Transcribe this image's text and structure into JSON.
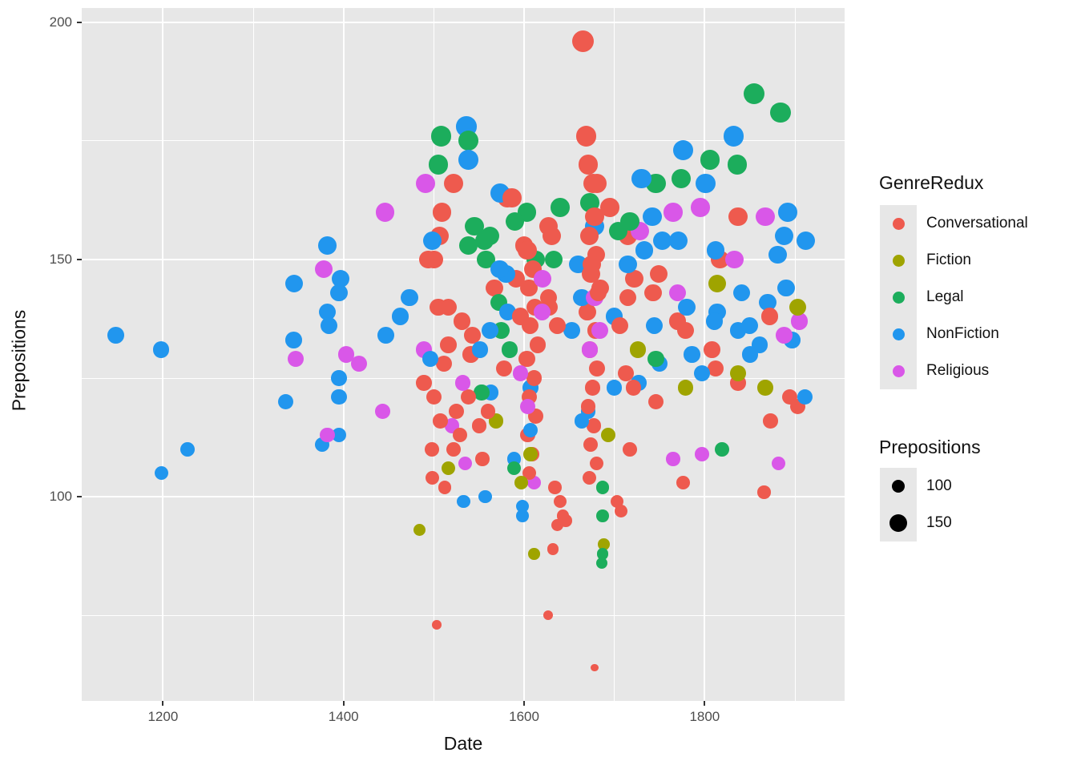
{
  "chart_data": {
    "type": "scatter",
    "title": "",
    "xlabel": "Date",
    "ylabel": "Prepositions",
    "x_major_ticks": [
      1200,
      1400,
      1600,
      1800
    ],
    "x_minor_ticks": [
      1300,
      1500,
      1700,
      1900
    ],
    "y_major_ticks": [
      100,
      150,
      200
    ],
    "y_minor_ticks": [
      75,
      125,
      175
    ],
    "xlim": [
      1110,
      1955
    ],
    "ylim": [
      57,
      203
    ],
    "grid": "on",
    "panel_bg": "#E7E7E7",
    "size_scale": {
      "maps": "Prepositions",
      "legend_values": [
        100,
        150
      ]
    },
    "color_legend": {
      "title": "GenreRedux",
      "position": "right",
      "entries": [
        {
          "label": "Conversational",
          "color": "#EE5A4E"
        },
        {
          "label": "Fiction",
          "color": "#9FA400"
        },
        {
          "label": "Legal",
          "color": "#1CAD5C"
        },
        {
          "label": "NonFiction",
          "color": "#2196EE"
        },
        {
          "label": "Religious",
          "color": "#D957E8"
        }
      ]
    },
    "size_legend": {
      "title": "Prepositions",
      "entries": [
        {
          "label": "100",
          "value": 100
        },
        {
          "label": "150",
          "value": 150
        }
      ],
      "dot_color": "#000000"
    },
    "series": [
      {
        "name": "Conversational",
        "color": "#EE5A4E",
        "points": [
          [
            1665,
            196
          ],
          [
            1669,
            176
          ],
          [
            1671,
            170
          ],
          [
            1676,
            166
          ],
          [
            1681,
            166
          ],
          [
            1678,
            159
          ],
          [
            1672,
            155
          ],
          [
            1680,
            151
          ],
          [
            1674,
            147
          ],
          [
            1682,
            143
          ],
          [
            1670,
            139
          ],
          [
            1679,
            135
          ],
          [
            1673,
            131
          ],
          [
            1681,
            127
          ],
          [
            1676,
            123
          ],
          [
            1671,
            119
          ],
          [
            1677,
            115
          ],
          [
            1674,
            111
          ],
          [
            1680,
            107
          ],
          [
            1672,
            104
          ],
          [
            1522,
            166
          ],
          [
            1509,
            160
          ],
          [
            1506,
            155
          ],
          [
            1500,
            150
          ],
          [
            1494,
            150
          ],
          [
            1516,
            140
          ],
          [
            1505,
            140
          ],
          [
            1531,
            137
          ],
          [
            1543,
            134
          ],
          [
            1511,
            128
          ],
          [
            1489,
            124
          ],
          [
            1538,
            121
          ],
          [
            1560,
            118
          ],
          [
            1507,
            116
          ],
          [
            1529,
            113
          ],
          [
            1498,
            104
          ],
          [
            1512,
            102
          ],
          [
            1500,
            121
          ],
          [
            1525,
            118
          ],
          [
            1550,
            115
          ],
          [
            1498,
            110
          ],
          [
            1522,
            110
          ],
          [
            1554,
            108
          ],
          [
            1516,
            132
          ],
          [
            1541,
            130
          ],
          [
            1578,
            127
          ],
          [
            1581,
            163
          ],
          [
            1587,
            163
          ],
          [
            1600,
            153
          ],
          [
            1631,
            155
          ],
          [
            1627,
            157
          ],
          [
            1604,
            152
          ],
          [
            1591,
            146
          ],
          [
            1567,
            144
          ],
          [
            1596,
            138
          ],
          [
            1628,
            140
          ],
          [
            1627,
            142
          ],
          [
            1637,
            136
          ],
          [
            1603,
            152
          ],
          [
            1610,
            148
          ],
          [
            1605,
            144
          ],
          [
            1612,
            140
          ],
          [
            1607,
            136
          ],
          [
            1615,
            132
          ],
          [
            1603,
            129
          ],
          [
            1611,
            125
          ],
          [
            1606,
            121
          ],
          [
            1613,
            117
          ],
          [
            1604,
            113
          ],
          [
            1609,
            109
          ],
          [
            1606,
            105
          ],
          [
            1634,
            102
          ],
          [
            1640,
            99
          ],
          [
            1643,
            96
          ],
          [
            1637,
            94
          ],
          [
            1646,
            95
          ],
          [
            1632,
            89
          ],
          [
            1703,
            99
          ],
          [
            1707,
            97
          ],
          [
            1684,
            144
          ],
          [
            1675,
            149
          ],
          [
            1695,
            161
          ],
          [
            1715,
            142
          ],
          [
            1722,
            146
          ],
          [
            1706,
            136
          ],
          [
            1713,
            126
          ],
          [
            1717,
            110
          ],
          [
            1743,
            143
          ],
          [
            1749,
            147
          ],
          [
            1770,
            137
          ],
          [
            1779,
            135
          ],
          [
            1808,
            131
          ],
          [
            1812,
            127
          ],
          [
            1837,
            124
          ],
          [
            1872,
            138
          ],
          [
            1817,
            150
          ],
          [
            1837,
            159
          ],
          [
            1721,
            123
          ],
          [
            1746,
            120
          ],
          [
            1873,
            116
          ],
          [
            1894,
            121
          ],
          [
            1903,
            119
          ],
          [
            1866,
            101
          ],
          [
            1776,
            103
          ],
          [
            1503,
            73
          ],
          [
            1627,
            75
          ],
          [
            1678,
            64
          ],
          [
            1715,
            155
          ]
        ]
      },
      {
        "name": "Fiction",
        "color": "#9FA400",
        "points": [
          [
            1484,
            93
          ],
          [
            1611,
            88
          ],
          [
            1597,
            103
          ],
          [
            1688,
            90
          ],
          [
            1693,
            113
          ],
          [
            1516,
            106
          ],
          [
            1569,
            116
          ],
          [
            1607,
            109
          ],
          [
            1726,
            131
          ],
          [
            1779,
            123
          ],
          [
            1837,
            126
          ],
          [
            1867,
            123
          ],
          [
            1903,
            140
          ],
          [
            1814,
            145
          ]
        ]
      },
      {
        "name": "Legal",
        "color": "#1CAD5C",
        "points": [
          [
            1508,
            176
          ],
          [
            1538,
            175
          ],
          [
            1505,
            170
          ],
          [
            1545,
            157
          ],
          [
            1556,
            154
          ],
          [
            1538,
            153
          ],
          [
            1562,
            155
          ],
          [
            1558,
            150
          ],
          [
            1590,
            158
          ],
          [
            1603,
            160
          ],
          [
            1613,
            150
          ],
          [
            1633,
            150
          ],
          [
            1640,
            161
          ],
          [
            1673,
            162
          ],
          [
            1704,
            156
          ],
          [
            1572,
            141
          ],
          [
            1575,
            135
          ],
          [
            1584,
            131
          ],
          [
            1553,
            122
          ],
          [
            1589,
            106
          ],
          [
            1687,
            102
          ],
          [
            1687,
            96
          ],
          [
            1687,
            88
          ],
          [
            1686,
            86
          ],
          [
            1717,
            158
          ],
          [
            1746,
            166
          ],
          [
            1774,
            167
          ],
          [
            1806,
            171
          ],
          [
            1836,
            170
          ],
          [
            1855,
            185
          ],
          [
            1884,
            181
          ],
          [
            1746,
            129
          ],
          [
            1819,
            110
          ]
        ]
      },
      {
        "name": "NonFiction",
        "color": "#2196EE",
        "points": [
          [
            1148,
            134
          ],
          [
            1198,
            131
          ],
          [
            1198,
            105
          ],
          [
            1227,
            110
          ],
          [
            1336,
            120
          ],
          [
            1345,
            145
          ],
          [
            1345,
            133
          ],
          [
            1376,
            111
          ],
          [
            1382,
            153
          ],
          [
            1382,
            139
          ],
          [
            1384,
            136
          ],
          [
            1395,
            143
          ],
          [
            1395,
            125
          ],
          [
            1395,
            121
          ],
          [
            1395,
            113
          ],
          [
            1397,
            146
          ],
          [
            1447,
            134
          ],
          [
            1463,
            138
          ],
          [
            1473,
            142
          ],
          [
            1496,
            129
          ],
          [
            1498,
            154
          ],
          [
            1536,
            178
          ],
          [
            1538,
            171
          ],
          [
            1573,
            164
          ],
          [
            1573,
            148
          ],
          [
            1580,
            147
          ],
          [
            1582,
            139
          ],
          [
            1562,
            135
          ],
          [
            1551,
            131
          ],
          [
            1563,
            122
          ],
          [
            1589,
            108
          ],
          [
            1607,
            123
          ],
          [
            1607,
            114
          ],
          [
            1598,
            98
          ],
          [
            1598,
            96
          ],
          [
            1533,
            99
          ],
          [
            1557,
            100
          ],
          [
            1653,
            135
          ],
          [
            1664,
            142
          ],
          [
            1660,
            149
          ],
          [
            1678,
            157
          ],
          [
            1700,
            138
          ],
          [
            1671,
            118
          ],
          [
            1664,
            116
          ],
          [
            1700,
            123
          ],
          [
            1727,
            124
          ],
          [
            1715,
            149
          ],
          [
            1730,
            167
          ],
          [
            1776,
            173
          ],
          [
            1801,
            166
          ],
          [
            1832,
            176
          ],
          [
            1742,
            159
          ],
          [
            1753,
            154
          ],
          [
            1771,
            154
          ],
          [
            1733,
            152
          ],
          [
            1812,
            152
          ],
          [
            1881,
            151
          ],
          [
            1888,
            155
          ],
          [
            1892,
            160
          ],
          [
            1912,
            154
          ],
          [
            1744,
            136
          ],
          [
            1780,
            140
          ],
          [
            1811,
            137
          ],
          [
            1837,
            135
          ],
          [
            1850,
            136
          ],
          [
            1861,
            132
          ],
          [
            1850,
            130
          ],
          [
            1786,
            130
          ],
          [
            1797,
            126
          ],
          [
            1750,
            128
          ],
          [
            1814,
            139
          ],
          [
            1841,
            143
          ],
          [
            1870,
            141
          ],
          [
            1890,
            144
          ],
          [
            1897,
            133
          ],
          [
            1911,
            121
          ]
        ]
      },
      {
        "name": "Religious",
        "color": "#D957E8",
        "points": [
          [
            1378,
            148
          ],
          [
            1347,
            129
          ],
          [
            1403,
            130
          ],
          [
            1417,
            128
          ],
          [
            1382,
            113
          ],
          [
            1443,
            118
          ],
          [
            1446,
            160
          ],
          [
            1491,
            166
          ],
          [
            1489,
            131
          ],
          [
            1532,
            124
          ],
          [
            1520,
            115
          ],
          [
            1535,
            107
          ],
          [
            1596,
            126
          ],
          [
            1604,
            119
          ],
          [
            1620,
            139
          ],
          [
            1620,
            146
          ],
          [
            1678,
            142
          ],
          [
            1684,
            135
          ],
          [
            1673,
            131
          ],
          [
            1611,
            103
          ],
          [
            1765,
            160
          ],
          [
            1795,
            161
          ],
          [
            1867,
            159
          ],
          [
            1833,
            150
          ],
          [
            1728,
            156
          ],
          [
            1770,
            143
          ],
          [
            1905,
            137
          ],
          [
            1888,
            134
          ],
          [
            1765,
            108
          ],
          [
            1797,
            109
          ],
          [
            1882,
            107
          ]
        ]
      }
    ]
  }
}
